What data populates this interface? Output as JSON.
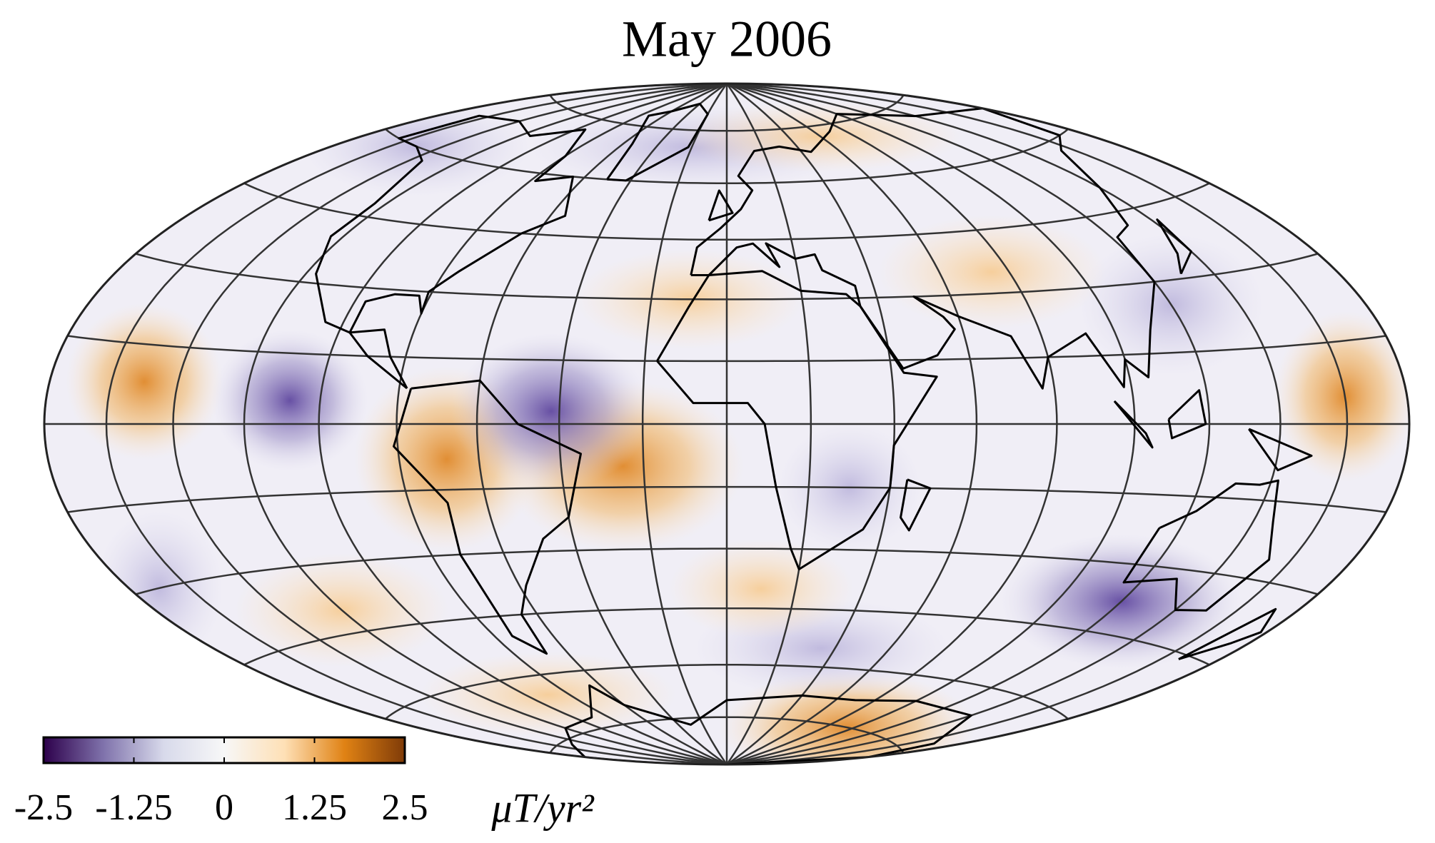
{
  "title": "May 2006",
  "colorbar": {
    "lim": [
      -2.5,
      2.5
    ],
    "ticks": [
      -2.5,
      -1.25,
      0,
      1.25,
      2.5
    ],
    "label": "μT/yr²",
    "colors": [
      "#2d004b",
      "#8073ac",
      "#d8daeb",
      "#f7f7f7",
      "#fee0b6",
      "#e08214",
      "#7f3b08"
    ]
  }
}
